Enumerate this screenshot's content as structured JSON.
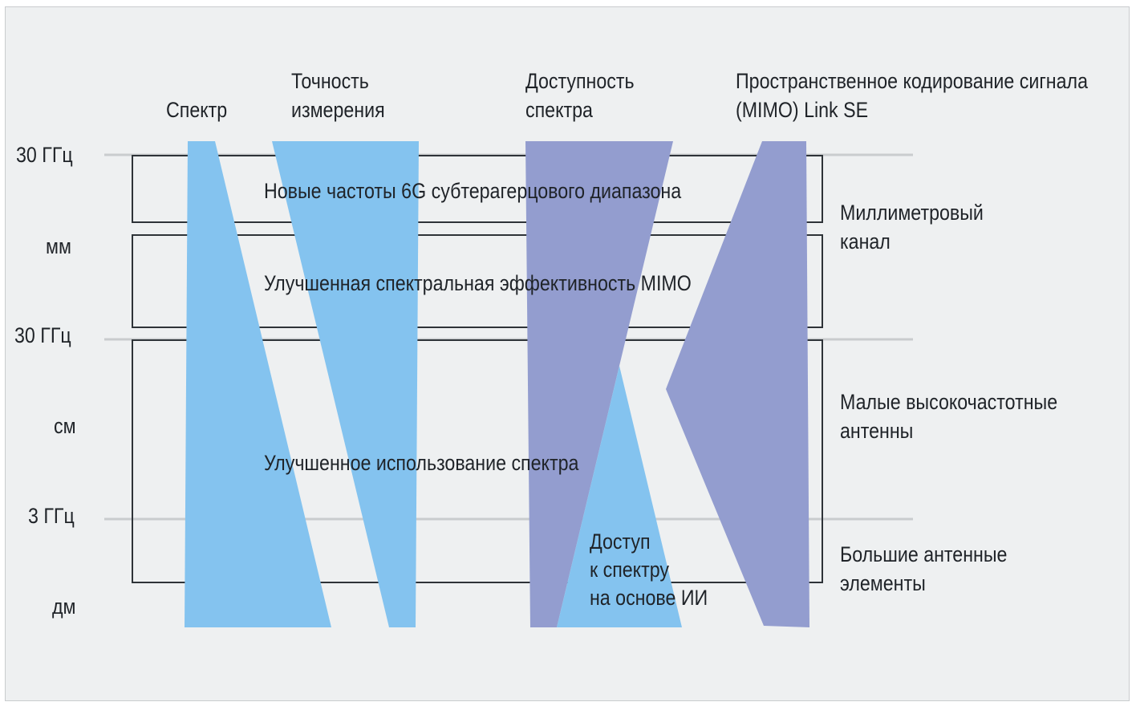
{
  "columns": {
    "spectrum": "Спектр",
    "accuracy": [
      "Точность",
      "измерения"
    ],
    "availability": [
      "Доступность",
      "спектра"
    ],
    "mimo": [
      "Пространственное кодирование сигнала",
      "(MIMO) Link SE"
    ]
  },
  "axis": {
    "ghz30_top": "30 ГГц",
    "mm": "мм",
    "ghz30_mid": "30 ГГц",
    "cm": "см",
    "ghz3": "3 ГГц",
    "dm": "дм"
  },
  "bands": {
    "band1": "Новые частоты 6G субтерагерцового диапазона",
    "band2": "Улучшенная спектральная эффективность MIMO",
    "band3": "Улучшенное использование спектра"
  },
  "ai_access": [
    "Доступ",
    "к спектру",
    "на основе ИИ"
  ],
  "right_labels": {
    "mmwave": [
      "Миллиметровый",
      "канал"
    ],
    "small": [
      "Малые высокочастотные",
      "антенны"
    ],
    "large": [
      "Большие антенные",
      "элементы"
    ]
  },
  "colors": {
    "light_blue": "#84c3ef",
    "purple": "#939dcf",
    "background": "#eef0f1",
    "line": "#c9ccce",
    "box": "#2e3338"
  }
}
